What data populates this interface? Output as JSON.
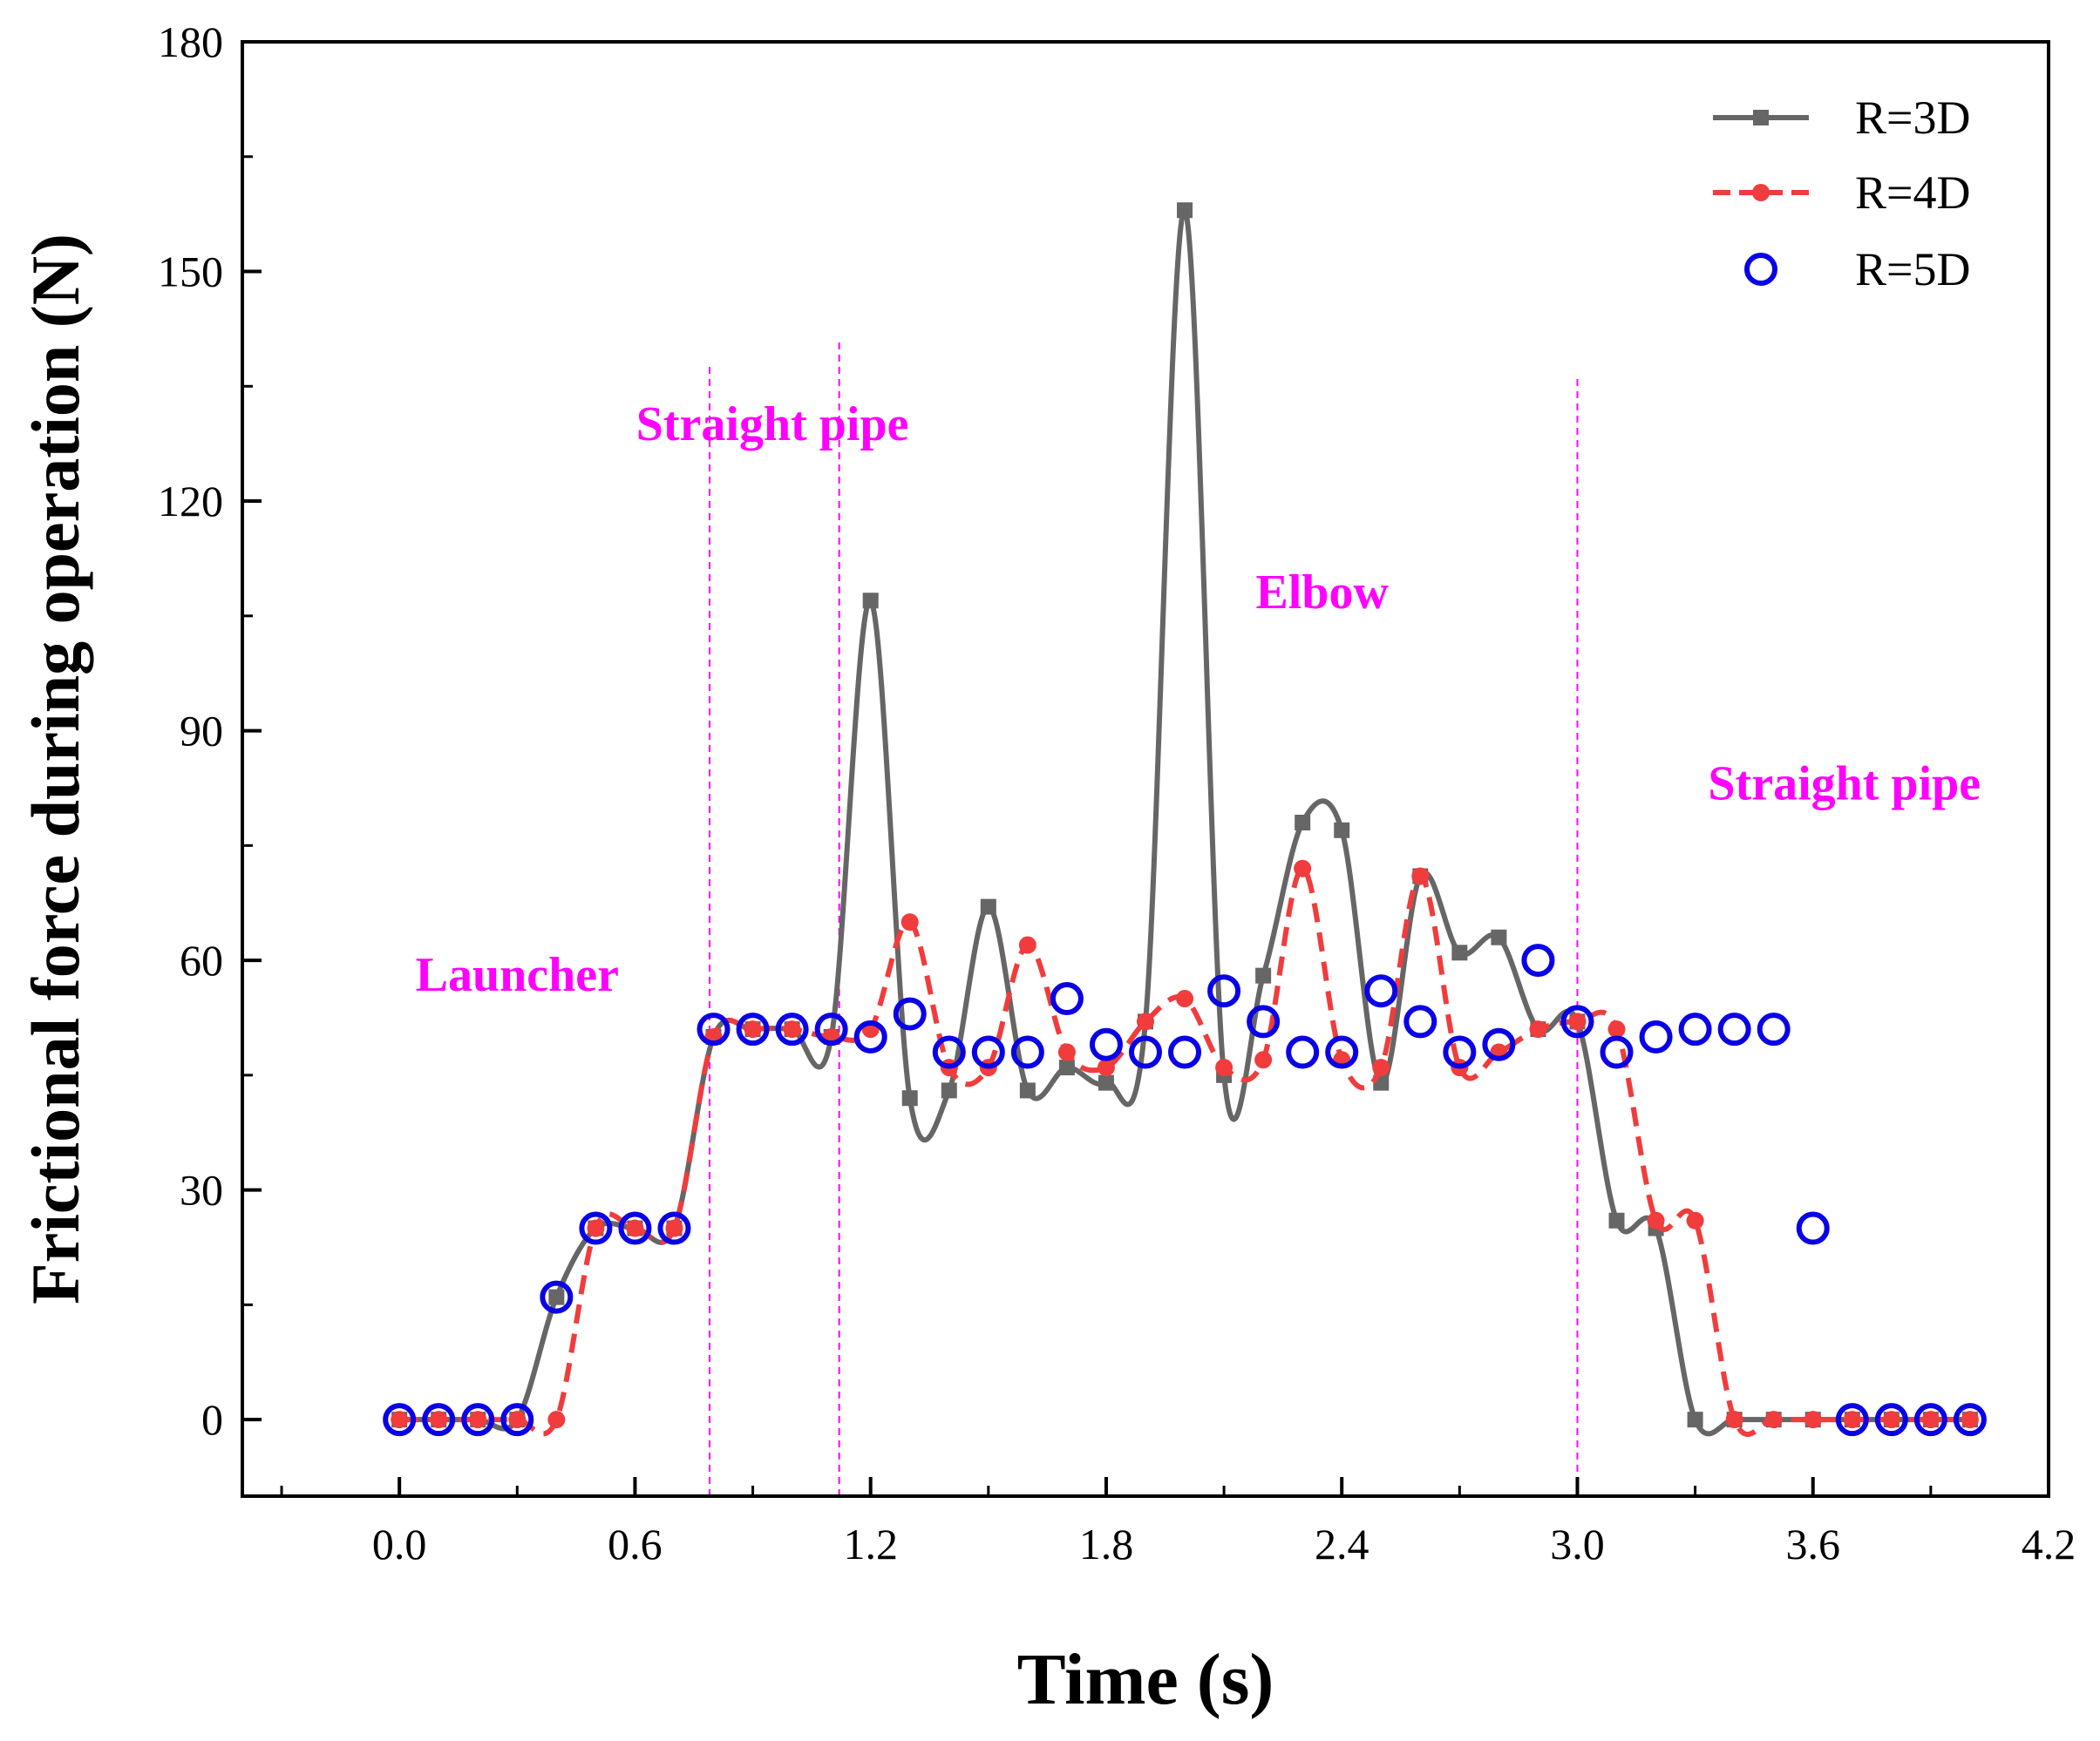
{
  "chart_data": {
    "type": "line",
    "title": "",
    "xlabel": "Time (s)",
    "ylabel": "Frictional force during operation (N)",
    "xlim": [
      -0.4,
      4.2
    ],
    "ylim": [
      -10,
      180
    ],
    "xticks": [
      0.0,
      0.6,
      1.2,
      1.8,
      2.4,
      3.0,
      3.6,
      4.2
    ],
    "xtick_labels": [
      "0.0",
      "0.6",
      "1.2",
      "1.8",
      "2.4",
      "3.0",
      "3.6",
      "4.2"
    ],
    "yticks": [
      0,
      30,
      60,
      90,
      120,
      150,
      180
    ],
    "ytick_labels": [
      "0",
      "30",
      "60",
      "90",
      "120",
      "150",
      "180"
    ],
    "grid": false,
    "legend_position": "top-right",
    "x": [
      0.0,
      0.1,
      0.2,
      0.3,
      0.4,
      0.5,
      0.6,
      0.7,
      0.8,
      0.9,
      1.0,
      1.1,
      1.2,
      1.3,
      1.4,
      1.5,
      1.6,
      1.7,
      1.8,
      1.9,
      2.0,
      2.1,
      2.2,
      2.3,
      2.4,
      2.5,
      2.6,
      2.7,
      2.8,
      2.9,
      3.0,
      3.1,
      3.2,
      3.3,
      3.4,
      3.5,
      3.6,
      3.7,
      3.8,
      3.9,
      4.0
    ],
    "series": [
      {
        "name": "R=3D",
        "color": "#666666",
        "style": "solid-line-square-markers",
        "values": [
          0,
          0,
          0,
          0,
          16,
          25,
          25,
          25,
          50,
          51,
          51,
          50,
          107,
          42,
          43,
          67,
          43,
          46,
          44,
          52,
          158,
          45,
          58,
          78,
          77,
          44,
          71,
          61,
          63,
          51,
          52,
          26,
          25,
          0,
          0,
          0,
          0,
          0,
          0,
          0,
          0
        ]
      },
      {
        "name": "R=4D",
        "color": "#f03c3c",
        "style": "dashed-line-circle-markers",
        "values": [
          0,
          0,
          0,
          0,
          0,
          25,
          25,
          25,
          50,
          51,
          51,
          50,
          51,
          65,
          46,
          46,
          62,
          48,
          46,
          52,
          55,
          46,
          47,
          72,
          47,
          46,
          71,
          46,
          48,
          51,
          52,
          51,
          26,
          26,
          0,
          0,
          0,
          0,
          0,
          0,
          0
        ]
      },
      {
        "name": "R=5D",
        "color": "#0a00e6",
        "style": "open-circle-markers",
        "x": [
          0.0,
          0.1,
          0.2,
          0.3,
          0.4,
          0.5,
          0.6,
          0.7,
          0.8,
          0.9,
          1.0,
          1.1,
          1.2,
          1.3,
          1.4,
          1.5,
          1.6,
          1.7,
          1.8,
          1.9,
          2.0,
          2.1,
          2.2,
          2.3,
          2.4,
          2.5,
          2.6,
          2.7,
          2.8,
          2.9,
          3.0,
          3.1,
          3.2,
          3.3,
          3.4,
          3.5,
          3.6,
          3.7,
          3.8,
          3.9,
          4.0
        ],
        "values": [
          0,
          0,
          0,
          0,
          16,
          25,
          25,
          25,
          51,
          51,
          51,
          51,
          50,
          53,
          48,
          48,
          48,
          55,
          49,
          48,
          48,
          56,
          52,
          48,
          48,
          56,
          52,
          48,
          49,
          60,
          52,
          48,
          50,
          51,
          51,
          51,
          25,
          0,
          0,
          0,
          0
        ]
      }
    ],
    "annotations": [
      {
        "text": "Launcher",
        "x": 0.3,
        "y": 56,
        "color": "#ff00ff"
      },
      {
        "text": "Straight pipe",
        "x": 0.95,
        "y": 128,
        "color": "#ff00ff"
      },
      {
        "text": "Elbow",
        "x": 2.35,
        "y": 106,
        "color": "#ff00ff"
      },
      {
        "text": "Straight pipe",
        "x": 3.68,
        "y": 81,
        "color": "#ff00ff"
      }
    ],
    "vertical_lines": [
      {
        "x": 0.79,
        "ymax": 138,
        "color": "#ff00ff"
      },
      {
        "x": 1.12,
        "ymax": 141,
        "color": "#ff00ff"
      },
      {
        "x": 3.0,
        "ymax": 136,
        "color": "#ff00ff"
      }
    ]
  }
}
